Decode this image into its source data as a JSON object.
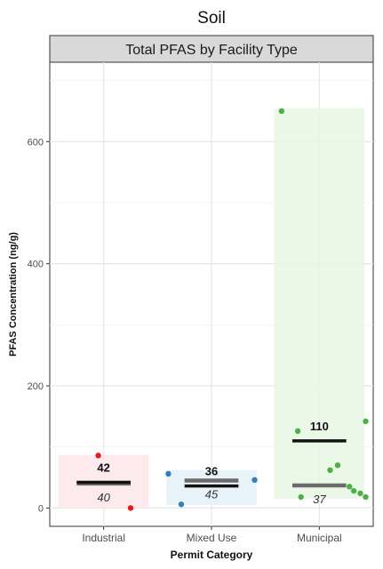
{
  "chart_data": {
    "type": "scatter",
    "title": "Soil",
    "facet_label": "Total PFAS by Facility Type",
    "xlabel": "Permit Category",
    "ylabel": "PFAS Concentration (ng/g)",
    "ylim": [
      -30,
      730
    ],
    "yticks": [
      0,
      200,
      400,
      600
    ],
    "grid": true,
    "categories": [
      "Industrial",
      "Mixed Use",
      "Municipal"
    ],
    "groups": [
      {
        "category": "Industrial",
        "color": "#e41a1c",
        "band_color": "#fde6e9",
        "range": [
          0,
          87
        ],
        "mean": 42,
        "median": 40,
        "mean_label": "42",
        "median_label": "40",
        "points": [
          {
            "offset": -0.05,
            "y": 86
          },
          {
            "offset": 0.25,
            "y": 0
          }
        ]
      },
      {
        "category": "Mixed Use",
        "color": "#377eb8",
        "band_color": "#e3f0f8",
        "range": [
          5,
          62
        ],
        "mean": 36,
        "median": 45,
        "mean_label": "36",
        "median_label": "45",
        "points": [
          {
            "offset": -0.4,
            "y": 56
          },
          {
            "offset": -0.28,
            "y": 6
          },
          {
            "offset": 0.4,
            "y": 46
          }
        ]
      },
      {
        "category": "Municipal",
        "color": "#4daf4a",
        "band_color": "#e7f7e4",
        "range": [
          15,
          655
        ],
        "mean": 110,
        "median": 37,
        "mean_label": "110",
        "median_label": "37",
        "points": [
          {
            "offset": -0.35,
            "y": 650
          },
          {
            "offset": -0.2,
            "y": 126
          },
          {
            "offset": -0.17,
            "y": 18
          },
          {
            "offset": 0.1,
            "y": 62
          },
          {
            "offset": 0.17,
            "y": 70
          },
          {
            "offset": 0.28,
            "y": 35
          },
          {
            "offset": 0.32,
            "y": 28
          },
          {
            "offset": 0.38,
            "y": 24
          },
          {
            "offset": 0.43,
            "y": 18
          },
          {
            "offset": 0.43,
            "y": 142
          }
        ]
      }
    ]
  }
}
